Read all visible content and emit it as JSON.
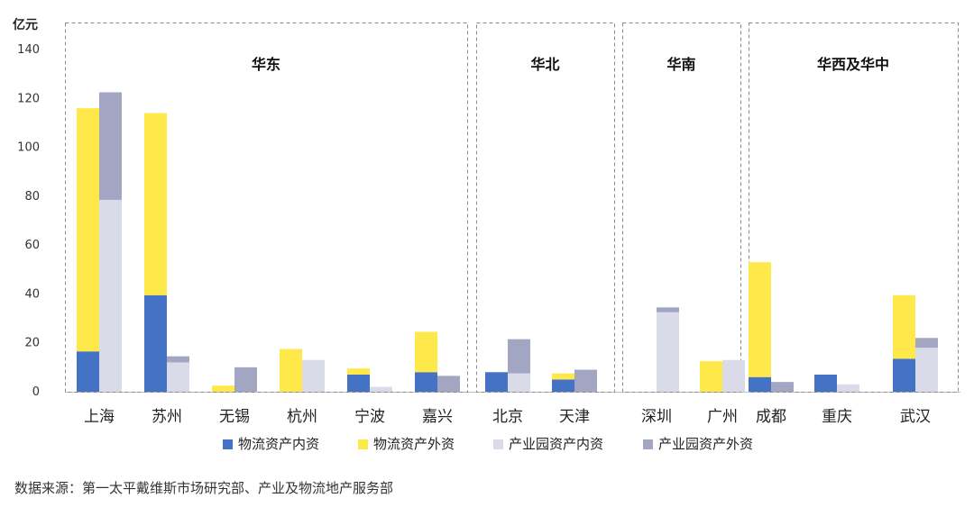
{
  "chart_data": {
    "type": "bar",
    "stacked": "two stacked bars per category",
    "unit_label": "亿元",
    "ylim": [
      0,
      140
    ],
    "yticks": [
      0,
      20,
      40,
      60,
      80,
      100,
      120,
      140
    ],
    "categories": [
      "上海",
      "苏州",
      "无锡",
      "杭州",
      "宁波",
      "嘉兴",
      "北京",
      "天津",
      "深圳",
      "广州",
      "成都",
      "重庆",
      "武汉"
    ],
    "series": [
      {
        "name": "物流资产内资",
        "color": "#4472c4",
        "stack": "logistics",
        "values": [
          16.5,
          39.5,
          0,
          0,
          7,
          8,
          8,
          5,
          0,
          0,
          6,
          7,
          13.5
        ]
      },
      {
        "name": "物流资产外资",
        "color": "#ffe84a",
        "stack": "logistics",
        "values": [
          99.5,
          74.5,
          2.5,
          17.5,
          2.5,
          16.5,
          0,
          2.5,
          0,
          12.5,
          47,
          0,
          26
        ]
      },
      {
        "name": "产业园资产内资",
        "color": "#d9dce8",
        "stack": "park",
        "values": [
          78.5,
          12,
          0,
          13,
          2,
          0,
          7.5,
          0,
          32.5,
          13,
          0,
          3,
          18
        ]
      },
      {
        "name": "产业园资产外资",
        "color": "#a2a6c3",
        "stack": "park",
        "values": [
          44,
          2.5,
          10,
          0,
          0,
          6.5,
          14,
          9,
          2,
          0,
          4,
          0,
          4
        ]
      }
    ],
    "regions": [
      {
        "label": "华东",
        "from": 0,
        "to": 5
      },
      {
        "label": "华北",
        "from": 6,
        "to": 7
      },
      {
        "label": "华南",
        "from": 8,
        "to": 9
      },
      {
        "label": "华西及华中",
        "from": 10,
        "to": 12
      }
    ],
    "legend_position": "bottom"
  },
  "source_note": "数据来源：第一太平戴维斯市场研究部、产业及物流地产服务部"
}
